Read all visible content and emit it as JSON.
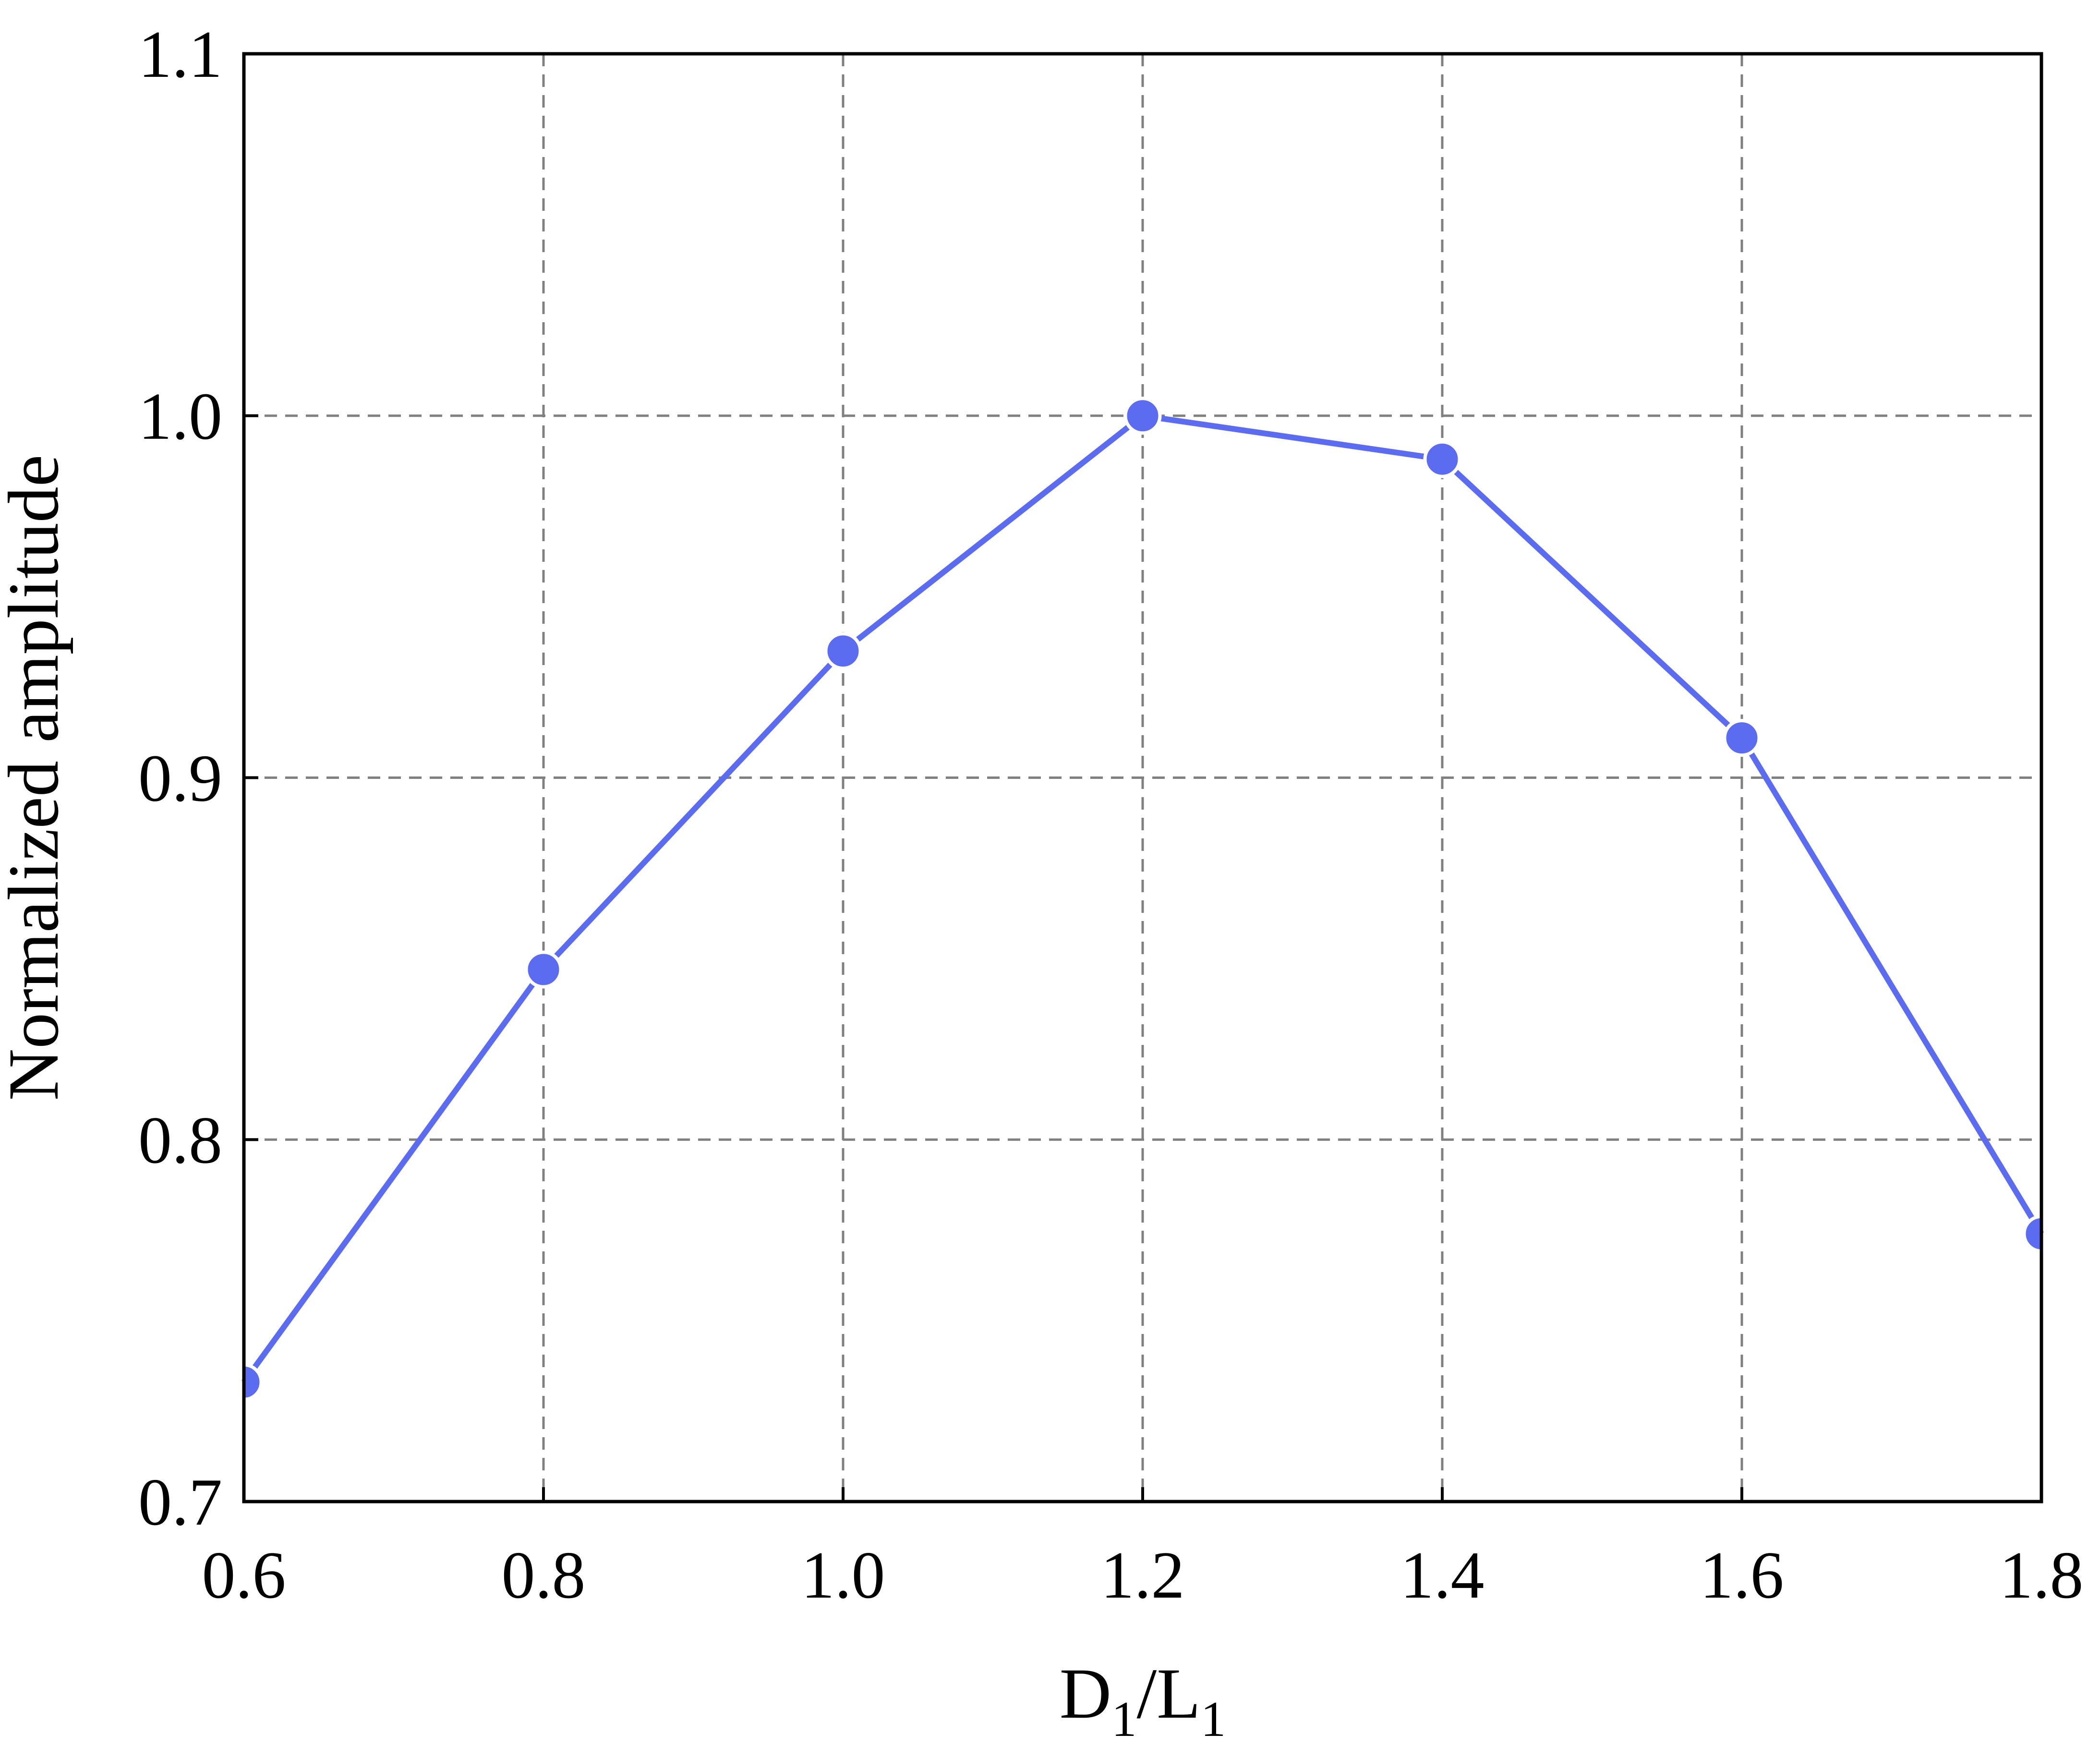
{
  "chart_data": {
    "type": "line",
    "title": "",
    "xlabel_main": "D",
    "xlabel_sub1": "1",
    "xlabel_slash": "/L",
    "xlabel_sub2": "1",
    "ylabel": "Normalized amplitude",
    "xlim": [
      0.6,
      1.8
    ],
    "ylim": [
      0.7,
      1.1
    ],
    "xticks": [
      "0.6",
      "0.8",
      "1.0",
      "1.2",
      "1.4",
      "1.6",
      "1.8"
    ],
    "yticks": [
      "0.7",
      "0.8",
      "0.9",
      "1.0",
      "1.1"
    ],
    "grid": true,
    "series": [
      {
        "color": "#5b6cf0",
        "x": [
          0.6,
          0.8,
          1.0,
          1.2,
          1.4,
          1.6,
          1.8
        ],
        "y": [
          0.733,
          0.847,
          0.935,
          1.0,
          0.988,
          0.911,
          0.774
        ]
      }
    ]
  }
}
